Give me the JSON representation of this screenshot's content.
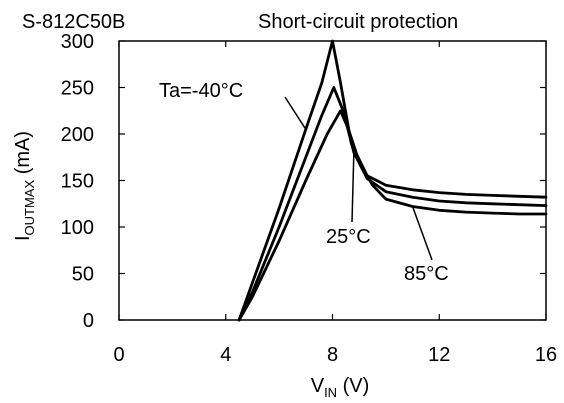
{
  "chart_data": {
    "type": "line",
    "title": "S-812C50B",
    "subtitle": "Short-circuit protection",
    "xlabel": {
      "main": "V",
      "sub": "IN",
      "unit": "(V)"
    },
    "ylabel": {
      "main": "I",
      "sub": "OUTMAX",
      "unit": "(mA)"
    },
    "xlim": [
      0,
      16
    ],
    "ylim": [
      0,
      300
    ],
    "xticks": [
      0,
      4,
      8,
      12,
      16
    ],
    "yticks": [
      0,
      50,
      100,
      150,
      200,
      250,
      300
    ],
    "grid": false,
    "line_color": "#000000",
    "series": [
      {
        "name": "Ta=-40°C",
        "x": [
          4.5,
          5.0,
          6.0,
          7.0,
          7.6,
          8.0,
          8.3,
          8.7,
          9.3,
          10.0,
          11.0,
          12.0,
          13.0,
          14.0,
          15.0,
          16.0
        ],
        "y": [
          0,
          40,
          120,
          205,
          255,
          300,
          255,
          190,
          155,
          145,
          140,
          137,
          135,
          134,
          133,
          132
        ]
      },
      {
        "name": "25°C",
        "x": [
          4.5,
          5.0,
          6.0,
          7.0,
          7.6,
          8.05,
          8.4,
          8.8,
          9.3,
          10.0,
          11.0,
          12.0,
          13.0,
          14.0,
          15.0,
          16.0
        ],
        "y": [
          0,
          30,
          100,
          175,
          220,
          250,
          225,
          180,
          152,
          138,
          132,
          128,
          126,
          125,
          124,
          123
        ]
      },
      {
        "name": "85°C",
        "x": [
          4.5,
          5.0,
          6.0,
          7.0,
          7.8,
          8.3,
          8.6,
          9.0,
          9.5,
          10.0,
          11.0,
          12.0,
          13.0,
          14.0,
          15.0,
          16.0
        ],
        "y": [
          0,
          25,
          85,
          150,
          200,
          225,
          205,
          170,
          145,
          130,
          122,
          118,
          116,
          115,
          114,
          114
        ]
      }
    ],
    "annotations": [
      {
        "text": "Ta=-40°C",
        "series": 0,
        "x": 7.0,
        "y": 205
      },
      {
        "text": "25°C",
        "series": 1,
        "x": 8.8,
        "y": 180
      },
      {
        "text": "85°C",
        "series": 2,
        "x": 11.0,
        "y": 122
      }
    ]
  }
}
